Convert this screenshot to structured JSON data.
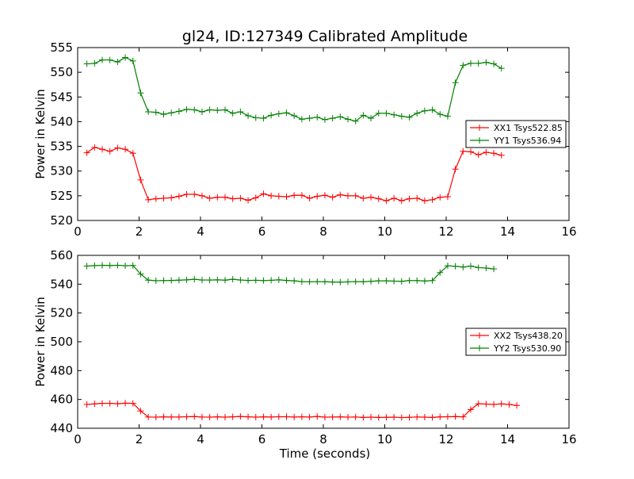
{
  "chart_data": [
    {
      "type": "line",
      "title": "gl24, ID:127349 Calibrated Amplitude",
      "xlabel": "",
      "ylabel": "Power in Kelvin",
      "xlim": [
        0,
        16
      ],
      "ylim": [
        520,
        555
      ],
      "xticks": [
        "0",
        "2",
        "4",
        "6",
        "8",
        "10",
        "12",
        "14",
        "16"
      ],
      "yticks": [
        "520",
        "525",
        "530",
        "535",
        "540",
        "545",
        "550",
        "555"
      ],
      "legend_position": "center-right",
      "x": [
        0.3,
        0.55,
        0.8,
        1.05,
        1.3,
        1.55,
        1.8,
        2.05,
        2.3,
        2.55,
        2.8,
        3.05,
        3.3,
        3.55,
        3.8,
        4.05,
        4.3,
        4.55,
        4.8,
        5.05,
        5.3,
        5.55,
        5.8,
        6.05,
        6.3,
        6.55,
        6.8,
        7.05,
        7.3,
        7.55,
        7.8,
        8.05,
        8.3,
        8.55,
        8.8,
        9.05,
        9.3,
        9.55,
        9.8,
        10.05,
        10.3,
        10.55,
        10.8,
        11.05,
        11.3,
        11.55,
        11.8,
        12.05,
        12.3,
        12.55,
        12.8,
        13.05,
        13.3,
        13.55,
        13.8,
        14.05,
        14.3,
        14.55,
        14.8
      ],
      "series": [
        {
          "name": "XX1 Tsys522.85",
          "color": "#ff0000",
          "values": [
            533.7,
            534.8,
            534.4,
            534.0,
            534.7,
            534.4,
            533.6,
            528.2,
            524.2,
            524.4,
            524.5,
            524.6,
            524.9,
            525.3,
            525.3,
            525.0,
            524.5,
            524.7,
            524.7,
            524.4,
            524.5,
            524.1,
            524.6,
            525.4,
            525.0,
            524.9,
            524.8,
            525.1,
            525.1,
            524.5,
            524.9,
            525.1,
            524.7,
            525.2,
            525.0,
            525.0,
            524.5,
            524.7,
            524.4,
            524.0,
            524.5,
            524.0,
            524.4,
            524.5,
            524.0,
            524.2,
            524.7,
            524.8,
            530.4,
            534.0,
            533.9,
            533.3,
            533.8,
            533.6,
            533.2,
            null,
            null,
            null,
            null
          ]
        },
        {
          "name": "YY1 Tsys536.94",
          "color": "#008000",
          "values": [
            551.7,
            551.8,
            552.5,
            552.5,
            552.1,
            553.0,
            552.3,
            545.8,
            542.0,
            541.9,
            541.5,
            541.8,
            542.1,
            542.5,
            542.4,
            542.0,
            542.4,
            542.3,
            542.4,
            541.7,
            542.0,
            541.2,
            540.8,
            540.7,
            541.3,
            541.6,
            541.8,
            541.2,
            540.5,
            540.7,
            540.9,
            540.4,
            540.7,
            541.0,
            540.5,
            540.1,
            541.3,
            540.7,
            541.7,
            541.7,
            541.4,
            541.1,
            540.9,
            541.7,
            542.2,
            542.4,
            541.5,
            541.1,
            547.9,
            551.4,
            551.8,
            551.8,
            552.0,
            551.7,
            550.8,
            null,
            null,
            null,
            null
          ]
        }
      ]
    },
    {
      "type": "line",
      "title": "",
      "xlabel": "Time (seconds)",
      "ylabel": "Power in Kelvin",
      "xlim": [
        0,
        16
      ],
      "ylim": [
        440,
        560
      ],
      "xticks": [
        "0",
        "2",
        "4",
        "6",
        "8",
        "10",
        "12",
        "14",
        "16"
      ],
      "yticks": [
        "440",
        "460",
        "480",
        "500",
        "520",
        "540",
        "560"
      ],
      "legend_position": "center-right",
      "x": [
        0.3,
        0.55,
        0.8,
        1.05,
        1.3,
        1.55,
        1.8,
        2.05,
        2.3,
        2.55,
        2.8,
        3.05,
        3.3,
        3.55,
        3.8,
        4.05,
        4.3,
        4.55,
        4.8,
        5.05,
        5.3,
        5.55,
        5.8,
        6.05,
        6.3,
        6.55,
        6.8,
        7.05,
        7.3,
        7.55,
        7.8,
        8.05,
        8.3,
        8.55,
        8.8,
        9.05,
        9.3,
        9.55,
        9.8,
        10.05,
        10.3,
        10.55,
        10.8,
        11.05,
        11.3,
        11.55,
        11.8,
        12.05,
        12.3,
        12.55,
        12.8,
        13.05,
        13.3,
        13.55,
        13.8,
        14.05,
        14.3,
        14.55,
        14.8
      ],
      "series": [
        {
          "name": "XX2 Tsys438.20",
          "color": "#ff0000",
          "values": [
            456.5,
            456.9,
            457.3,
            457.3,
            457.0,
            457.4,
            457.3,
            452.0,
            447.8,
            447.7,
            447.9,
            447.8,
            447.8,
            448.0,
            448.1,
            447.8,
            447.7,
            447.9,
            447.7,
            447.9,
            448.2,
            447.9,
            447.7,
            447.9,
            447.8,
            448.0,
            448.0,
            447.8,
            447.9,
            447.8,
            448.2,
            447.7,
            447.8,
            447.9,
            447.7,
            447.8,
            447.5,
            447.7,
            447.5,
            447.6,
            447.7,
            447.4,
            447.6,
            447.8,
            447.7,
            447.5,
            447.9,
            448.0,
            448.1,
            447.9,
            453.0,
            457.0,
            456.8,
            456.5,
            456.9,
            456.5,
            455.8,
            null,
            null
          ]
        },
        {
          "name": "YY2 Tsys530.90",
          "color": "#008000",
          "values": [
            552.6,
            552.9,
            553.1,
            553.0,
            553.1,
            552.8,
            553.0,
            547.0,
            542.8,
            542.4,
            542.5,
            542.6,
            542.8,
            543.0,
            543.4,
            542.9,
            542.9,
            543.0,
            542.8,
            543.4,
            542.9,
            542.6,
            542.7,
            542.5,
            542.7,
            543.0,
            542.6,
            542.3,
            541.8,
            541.6,
            541.8,
            541.7,
            541.5,
            541.4,
            541.6,
            541.8,
            541.7,
            542.0,
            542.3,
            542.3,
            542.1,
            542.0,
            542.5,
            542.5,
            542.2,
            542.5,
            548.0,
            552.8,
            552.4,
            551.9,
            552.6,
            551.5,
            551.2,
            550.6,
            null,
            null,
            null,
            null,
            null
          ]
        }
      ]
    }
  ]
}
